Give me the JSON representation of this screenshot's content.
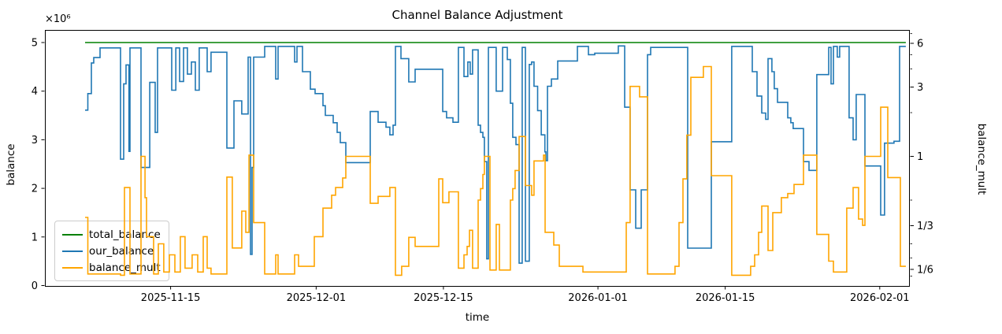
{
  "title": "Channel Balance Adjustment",
  "axes": {
    "x": {
      "label": "time",
      "ticks": [
        {
          "label": "2025-11-15",
          "t": 13.83
        },
        {
          "label": "2025-12-01",
          "t": 29.84
        },
        {
          "label": "2025-12-15",
          "t": 43.84
        },
        {
          "label": "2026-01-01",
          "t": 60.84
        },
        {
          "label": "2026-01-15",
          "t": 74.84
        },
        {
          "label": "2026-02-01",
          "t": 91.84
        }
      ]
    },
    "y_left": {
      "label": "balance",
      "offset_text": "×10⁶",
      "ticks": [
        {
          "label": "0",
          "v": 0
        },
        {
          "label": "1",
          "v": 1
        },
        {
          "label": "2",
          "v": 2
        },
        {
          "label": "3",
          "v": 3
        },
        {
          "label": "4",
          "v": 4
        },
        {
          "label": "5",
          "v": 5
        }
      ]
    },
    "y_right": {
      "label": "balance_mult",
      "ticks": [
        {
          "label": "6",
          "v": 6
        },
        {
          "label": "3",
          "v": 3
        },
        {
          "label": "1",
          "v": 1
        },
        {
          "label": "1/3",
          "v": 0.3333
        },
        {
          "label": "1/6",
          "v": 0.1667
        }
      ],
      "minor_ticks": [
        7,
        5,
        4,
        2,
        0.5,
        0.25,
        0.2,
        0.15
      ]
    }
  },
  "legend": {
    "items": [
      {
        "label": "total_balance",
        "color": "#008000"
      },
      {
        "label": "our_balance",
        "color": "#1f77b4"
      },
      {
        "label": "balance_mult",
        "color": "#ffa500"
      }
    ]
  },
  "chart_data": {
    "type": "line",
    "title": "Channel Balance Adjustment",
    "xlabel": "time",
    "ylabel_left": "balance",
    "ylabel_right": "balance_mult",
    "x_axis": {
      "kind": "date",
      "range_start": "2025-11-01",
      "range_end": "2026-02-04",
      "tick_labels": [
        "2025-11-15",
        "2025-12-01",
        "2025-12-15",
        "2026-01-01",
        "2026-01-15",
        "2026-02-01"
      ],
      "data_start": "2025-11-05",
      "data_end": "2026-02-03",
      "span_days": 95.15
    },
    "y_left_axis": {
      "scale": "linear",
      "lim": [
        0,
        5.27
      ],
      "unit": "1e6",
      "offset_text": "×10⁶"
    },
    "y_right_axis": {
      "scale": "log",
      "lim": [
        0.128,
        7.42
      ],
      "tick_values": [
        6,
        3,
        1,
        0.3333,
        0.1667
      ]
    },
    "grid": false,
    "legend_position": "lower left",
    "series": [
      {
        "name": "total_balance",
        "axis": "left",
        "color": "#008000",
        "style": "step",
        "points": [
          [
            4.42,
            5.0
          ]
        ],
        "t_end": 94.71
      },
      {
        "name": "our_balance",
        "axis": "left",
        "color": "#1f77b4",
        "style": "step",
        "points": [
          [
            4.42,
            3.61
          ],
          [
            4.72,
            3.95
          ],
          [
            5.11,
            4.58
          ],
          [
            5.37,
            4.69
          ],
          [
            6.07,
            4.89
          ],
          [
            8.32,
            2.6
          ],
          [
            8.67,
            4.15
          ],
          [
            8.93,
            4.54
          ],
          [
            9.25,
            2.76
          ],
          [
            9.36,
            4.89
          ],
          [
            10.57,
            2.43
          ],
          [
            11.53,
            4.18
          ],
          [
            12.13,
            3.15
          ],
          [
            12.39,
            4.89
          ],
          [
            13.95,
            4.02
          ],
          [
            14.4,
            4.89
          ],
          [
            14.82,
            4.2
          ],
          [
            15.25,
            4.89
          ],
          [
            15.68,
            4.35
          ],
          [
            16.12,
            4.6
          ],
          [
            16.55,
            4.02
          ],
          [
            16.98,
            4.89
          ],
          [
            17.85,
            4.4
          ],
          [
            18.28,
            4.8
          ],
          [
            20.02,
            2.83
          ],
          [
            20.8,
            3.8
          ],
          [
            21.66,
            3.53
          ],
          [
            22.36,
            4.7
          ],
          [
            22.62,
            0.64
          ],
          [
            22.79,
            2.43
          ],
          [
            22.96,
            4.7
          ],
          [
            24.18,
            4.92
          ],
          [
            25.39,
            4.25
          ],
          [
            25.65,
            4.92
          ],
          [
            27.47,
            4.6
          ],
          [
            27.73,
            4.92
          ],
          [
            28.34,
            4.4
          ],
          [
            29.2,
            4.04
          ],
          [
            29.72,
            3.95
          ],
          [
            30.59,
            3.7
          ],
          [
            30.85,
            3.5
          ],
          [
            31.72,
            3.35
          ],
          [
            32.15,
            3.15
          ],
          [
            32.5,
            2.94
          ],
          [
            33.1,
            2.53
          ],
          [
            35.79,
            3.58
          ],
          [
            36.66,
            3.36
          ],
          [
            37.52,
            3.26
          ],
          [
            37.95,
            3.1
          ],
          [
            38.3,
            3.3
          ],
          [
            38.56,
            4.92
          ],
          [
            39.17,
            4.67
          ],
          [
            40.03,
            4.19
          ],
          [
            40.73,
            4.45
          ],
          [
            43.76,
            3.58
          ],
          [
            44.19,
            3.45
          ],
          [
            44.89,
            3.36
          ],
          [
            45.49,
            4.9
          ],
          [
            46.1,
            4.3
          ],
          [
            46.53,
            4.6
          ],
          [
            46.79,
            4.35
          ],
          [
            47.05,
            4.85
          ],
          [
            47.66,
            3.3
          ],
          [
            47.92,
            3.15
          ],
          [
            48.18,
            3.05
          ],
          [
            48.35,
            2.55
          ],
          [
            48.61,
            0.55
          ],
          [
            48.79,
            4.9
          ],
          [
            49.65,
            4.0
          ],
          [
            50.35,
            4.9
          ],
          [
            50.87,
            4.65
          ],
          [
            51.21,
            3.75
          ],
          [
            51.47,
            3.05
          ],
          [
            51.82,
            2.9
          ],
          [
            52.17,
            0.46
          ],
          [
            52.51,
            4.9
          ],
          [
            52.86,
            0.5
          ],
          [
            53.29,
            4.55
          ],
          [
            53.55,
            4.6
          ],
          [
            53.81,
            4.1
          ],
          [
            54.2,
            3.6
          ],
          [
            54.6,
            3.1
          ],
          [
            55.0,
            2.75
          ],
          [
            55.11,
            2.57
          ],
          [
            55.29,
            4.1
          ],
          [
            55.72,
            4.25
          ],
          [
            56.41,
            4.62
          ],
          [
            58.58,
            4.92
          ],
          [
            59.79,
            4.75
          ],
          [
            60.49,
            4.78
          ],
          [
            63.08,
            4.93
          ],
          [
            63.78,
            3.67
          ],
          [
            64.38,
            1.97
          ],
          [
            64.99,
            1.18
          ],
          [
            65.6,
            1.97
          ],
          [
            66.29,
            4.75
          ],
          [
            66.64,
            4.9
          ],
          [
            70.71,
            0.77
          ],
          [
            73.31,
            2.96
          ],
          [
            75.56,
            4.92
          ],
          [
            77.82,
            4.4
          ],
          [
            78.34,
            3.9
          ],
          [
            78.86,
            3.55
          ],
          [
            79.29,
            3.42
          ],
          [
            79.55,
            4.67
          ],
          [
            79.98,
            4.4
          ],
          [
            80.24,
            4.05
          ],
          [
            80.59,
            3.77
          ],
          [
            81.72,
            3.45
          ],
          [
            82.06,
            3.35
          ],
          [
            82.32,
            3.23
          ],
          [
            83.45,
            2.55
          ],
          [
            84.06,
            2.37
          ],
          [
            84.92,
            4.34
          ],
          [
            86.22,
            4.9
          ],
          [
            86.48,
            4.15
          ],
          [
            86.74,
            4.92
          ],
          [
            87.17,
            4.7
          ],
          [
            87.43,
            4.92
          ],
          [
            88.47,
            3.45
          ],
          [
            88.91,
            3.0
          ],
          [
            89.25,
            3.93
          ],
          [
            90.21,
            2.46
          ],
          [
            91.94,
            1.45
          ],
          [
            92.37,
            2.93
          ],
          [
            93.41,
            2.97
          ],
          [
            94.02,
            4.92
          ]
        ],
        "t_end": 94.71
      },
      {
        "name": "balance_mult",
        "axis": "right",
        "color": "#ffa500",
        "style": "step",
        "points": [
          [
            4.42,
            0.38
          ],
          [
            4.72,
            0.155
          ],
          [
            8.32,
            0.152
          ],
          [
            8.75,
            0.61
          ],
          [
            9.36,
            0.155
          ],
          [
            10.57,
            1.0
          ],
          [
            11.01,
            0.52
          ],
          [
            11.18,
            0.28
          ],
          [
            11.96,
            0.155
          ],
          [
            12.48,
            0.25
          ],
          [
            13.08,
            0.16
          ],
          [
            13.69,
            0.21
          ],
          [
            14.3,
            0.16
          ],
          [
            14.9,
            0.28
          ],
          [
            15.42,
            0.17
          ],
          [
            16.2,
            0.21
          ],
          [
            16.81,
            0.16
          ],
          [
            17.42,
            0.28
          ],
          [
            17.85,
            0.17
          ],
          [
            18.28,
            0.155
          ],
          [
            20.02,
            0.72
          ],
          [
            20.62,
            0.234
          ],
          [
            21.66,
            0.42
          ],
          [
            22.1,
            0.3
          ],
          [
            22.45,
            1.02
          ],
          [
            22.96,
            0.35
          ],
          [
            24.18,
            0.155
          ],
          [
            25.39,
            0.21
          ],
          [
            25.65,
            0.155
          ],
          [
            27.47,
            0.21
          ],
          [
            27.9,
            0.175
          ],
          [
            29.64,
            0.28
          ],
          [
            30.59,
            0.44
          ],
          [
            31.54,
            0.54
          ],
          [
            31.98,
            0.61
          ],
          [
            32.76,
            0.71
          ],
          [
            33.1,
            1.0
          ],
          [
            35.79,
            0.475
          ],
          [
            36.66,
            0.53
          ],
          [
            37.95,
            0.61
          ],
          [
            38.56,
            0.152
          ],
          [
            39.25,
            0.175
          ],
          [
            40.03,
            0.277
          ],
          [
            40.73,
            0.24
          ],
          [
            43.33,
            0.7
          ],
          [
            43.76,
            0.48
          ],
          [
            44.45,
            0.57
          ],
          [
            45.49,
            0.17
          ],
          [
            46.1,
            0.21
          ],
          [
            46.45,
            0.24
          ],
          [
            46.71,
            0.31
          ],
          [
            47.05,
            0.17
          ],
          [
            47.66,
            0.5
          ],
          [
            47.92,
            0.6
          ],
          [
            48.18,
            0.75
          ],
          [
            48.35,
            1.0
          ],
          [
            48.96,
            0.165
          ],
          [
            49.65,
            0.34
          ],
          [
            50.0,
            0.165
          ],
          [
            51.21,
            0.5
          ],
          [
            51.47,
            0.6
          ],
          [
            51.73,
            0.8
          ],
          [
            52.17,
            1.37
          ],
          [
            52.86,
            0.63
          ],
          [
            53.55,
            0.54
          ],
          [
            53.81,
            0.93
          ],
          [
            54.85,
            1.02
          ],
          [
            55.03,
            0.3
          ],
          [
            55.98,
            0.245
          ],
          [
            56.59,
            0.175
          ],
          [
            59.19,
            0.16
          ],
          [
            63.95,
            0.35
          ],
          [
            64.38,
            3.03
          ],
          [
            65.42,
            2.57
          ],
          [
            66.29,
            0.155
          ],
          [
            69.32,
            0.175
          ],
          [
            69.76,
            0.35
          ],
          [
            70.19,
            0.7
          ],
          [
            70.62,
            1.4
          ],
          [
            71.06,
            3.5
          ],
          [
            72.44,
            4.15
          ],
          [
            73.31,
            0.736
          ],
          [
            75.56,
            0.152
          ],
          [
            77.64,
            0.175
          ],
          [
            78.08,
            0.21
          ],
          [
            78.51,
            0.3
          ],
          [
            78.86,
            0.455
          ],
          [
            79.55,
            0.225
          ],
          [
            80.07,
            0.41
          ],
          [
            81.02,
            0.52
          ],
          [
            81.72,
            0.555
          ],
          [
            82.41,
            0.64
          ],
          [
            83.45,
            1.02
          ],
          [
            84.92,
            0.29
          ],
          [
            86.22,
            0.19
          ],
          [
            86.74,
            0.16
          ],
          [
            88.21,
            0.44
          ],
          [
            88.91,
            0.61
          ],
          [
            89.51,
            0.37
          ],
          [
            89.95,
            0.335
          ],
          [
            90.21,
            1.0
          ],
          [
            91.94,
            2.18
          ],
          [
            92.72,
            0.715
          ],
          [
            94.11,
            0.175
          ]
        ],
        "t_end": 94.71
      }
    ]
  }
}
